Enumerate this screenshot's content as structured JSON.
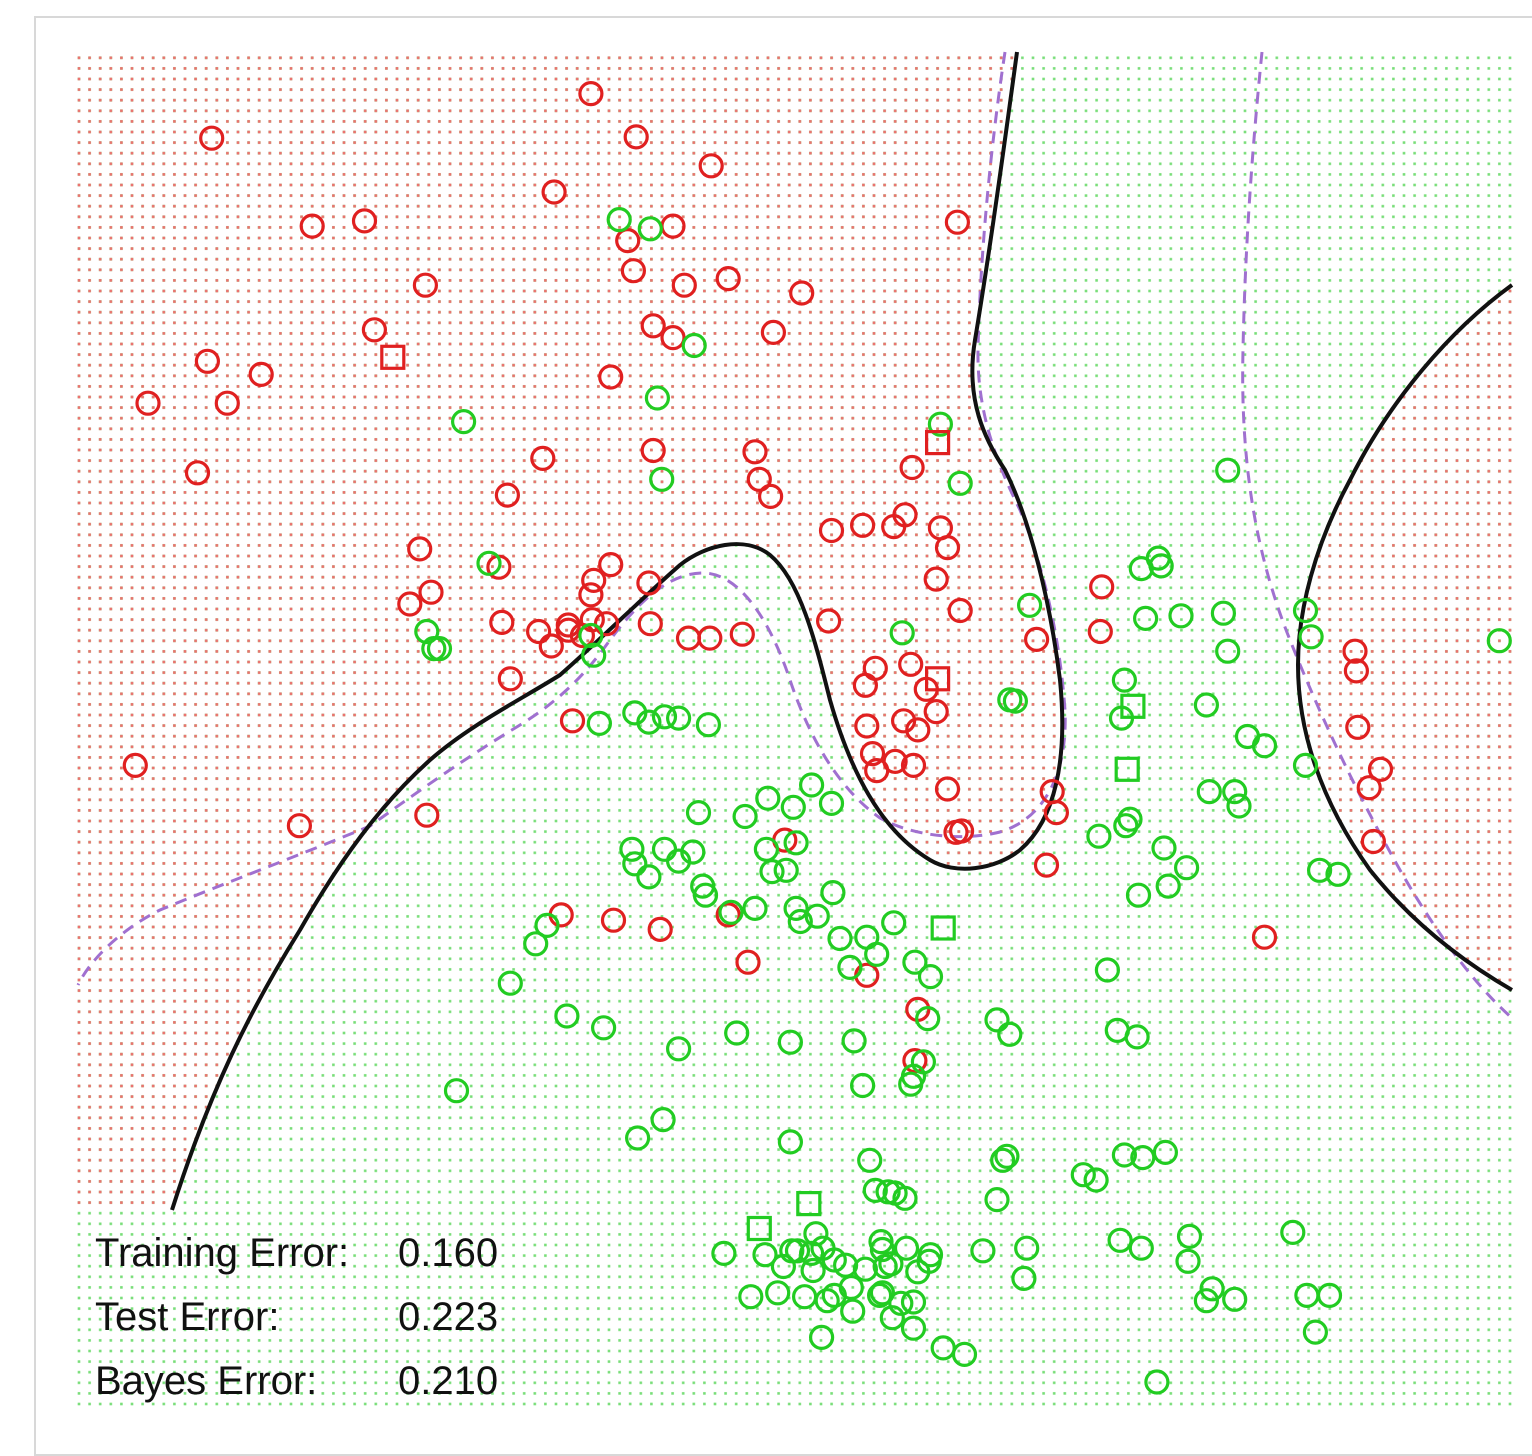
{
  "chart_data": {
    "type": "scatter",
    "title": "",
    "xlabel": "",
    "ylabel": "",
    "grid": false,
    "legend": "none",
    "xlim": [
      0,
      1
    ],
    "ylim": [
      0,
      1
    ],
    "colors": {
      "red": "#e02020",
      "green": "#22cc22",
      "red_grid": "#ee7070",
      "green_grid": "#7be07b",
      "boundary": "#111111",
      "bayes_boundary": "#a070d0"
    },
    "series": [
      {
        "color": "red",
        "points": [
          [
            0.086,
            0.948
          ],
          [
            0.157,
            0.881
          ],
          [
            0.328,
            0.907
          ],
          [
            0.041,
            0.746
          ],
          [
            0.083,
            0.778
          ],
          [
            0.097,
            0.746
          ],
          [
            0.121,
            0.768
          ],
          [
            0.194,
            0.885
          ],
          [
            0.237,
            0.836
          ],
          [
            0.201,
            0.802
          ],
          [
            0.076,
            0.693
          ],
          [
            0.295,
            0.676
          ],
          [
            0.354,
            0.982
          ],
          [
            0.386,
            0.949
          ],
          [
            0.439,
            0.927
          ],
          [
            0.412,
            0.881
          ],
          [
            0.384,
            0.847
          ],
          [
            0.38,
            0.87
          ],
          [
            0.42,
            0.836
          ],
          [
            0.368,
            0.766
          ],
          [
            0.398,
            0.805
          ],
          [
            0.412,
            0.796
          ],
          [
            0.451,
            0.841
          ],
          [
            0.483,
            0.8
          ],
          [
            0.503,
            0.83
          ],
          [
            0.613,
            0.884
          ],
          [
            0.398,
            0.71
          ],
          [
            0.32,
            0.704
          ],
          [
            0.47,
            0.709
          ],
          [
            0.473,
            0.688
          ],
          [
            0.481,
            0.675
          ],
          [
            0.524,
            0.649
          ],
          [
            0.546,
            0.653
          ],
          [
            0.568,
            0.652
          ],
          [
            0.576,
            0.661
          ],
          [
            0.601,
            0.651
          ],
          [
            0.581,
            0.697
          ],
          [
            0.598,
            0.612
          ],
          [
            0.615,
            0.588
          ],
          [
            0.606,
            0.636
          ],
          [
            0.356,
            0.611
          ],
          [
            0.368,
            0.623
          ],
          [
            0.395,
            0.609
          ],
          [
            0.396,
            0.578
          ],
          [
            0.365,
            0.578
          ],
          [
            0.354,
            0.6
          ],
          [
            0.289,
            0.621
          ],
          [
            0.291,
            0.579
          ],
          [
            0.317,
            0.572
          ],
          [
            0.338,
            0.573
          ],
          [
            0.297,
            0.536
          ],
          [
            0.326,
            0.561
          ],
          [
            0.338,
            0.577
          ],
          [
            0.348,
            0.569
          ],
          [
            0.355,
            0.581
          ],
          [
            0.233,
            0.635
          ],
          [
            0.226,
            0.593
          ],
          [
            0.241,
            0.602
          ],
          [
            0.423,
            0.567
          ],
          [
            0.438,
            0.567
          ],
          [
            0.461,
            0.57
          ],
          [
            0.522,
            0.58
          ],
          [
            0.548,
            0.531
          ],
          [
            0.555,
            0.544
          ],
          [
            0.58,
            0.547
          ],
          [
            0.591,
            0.528
          ],
          [
            0.598,
            0.511
          ],
          [
            0.585,
            0.497
          ],
          [
            0.575,
            0.504
          ],
          [
            0.569,
            0.473
          ],
          [
            0.553,
            0.479
          ],
          [
            0.549,
            0.5
          ],
          [
            0.556,
            0.466
          ],
          [
            0.582,
            0.47
          ],
          [
            0.606,
            0.452
          ],
          [
            0.612,
            0.419
          ],
          [
            0.616,
            0.42
          ],
          [
            0.669,
            0.566
          ],
          [
            0.68,
            0.45
          ],
          [
            0.683,
            0.434
          ],
          [
            0.676,
            0.394
          ],
          [
            0.715,
            0.606
          ],
          [
            0.714,
            0.572
          ],
          [
            0.032,
            0.47
          ],
          [
            0.148,
            0.424
          ],
          [
            0.238,
            0.432
          ],
          [
            0.333,
            0.356
          ],
          [
            0.341,
            0.504
          ],
          [
            0.37,
            0.352
          ],
          [
            0.403,
            0.345
          ],
          [
            0.451,
            0.356
          ],
          [
            0.465,
            0.32
          ],
          [
            0.491,
            0.413
          ],
          [
            0.549,
            0.31
          ],
          [
            0.585,
            0.284
          ],
          [
            0.583,
            0.245
          ],
          [
            0.907,
            0.412
          ],
          [
            0.83,
            0.339
          ],
          [
            0.895,
            0.542
          ],
          [
            0.894,
            0.557
          ],
          [
            0.896,
            0.499
          ],
          [
            0.904,
            0.453
          ],
          [
            0.912,
            0.467
          ]
        ]
      },
      {
        "color": "green",
        "points": [
          [
            0.374,
            0.886
          ],
          [
            0.396,
            0.879
          ],
          [
            0.427,
            0.79
          ],
          [
            0.264,
            0.732
          ],
          [
            0.401,
            0.75
          ],
          [
            0.601,
            0.73
          ],
          [
            0.615,
            0.685
          ],
          [
            0.804,
            0.695
          ],
          [
            0.404,
            0.688
          ],
          [
            0.282,
            0.624
          ],
          [
            0.238,
            0.572
          ],
          [
            0.243,
            0.559
          ],
          [
            0.247,
            0.559
          ],
          [
            0.354,
            0.569
          ],
          [
            0.356,
            0.554
          ],
          [
            0.574,
            0.571
          ],
          [
            0.36,
            0.502
          ],
          [
            0.385,
            0.51
          ],
          [
            0.395,
            0.503
          ],
          [
            0.406,
            0.507
          ],
          [
            0.416,
            0.506
          ],
          [
            0.437,
            0.501
          ],
          [
            0.65,
            0.52
          ],
          [
            0.654,
            0.519
          ],
          [
            0.664,
            0.592
          ],
          [
            0.746,
            0.582
          ],
          [
            0.743,
            0.62
          ],
          [
            0.755,
            0.628
          ],
          [
            0.757,
            0.622
          ],
          [
            0.771,
            0.584
          ],
          [
            0.801,
            0.586
          ],
          [
            0.804,
            0.557
          ],
          [
            0.859,
            0.588
          ],
          [
            0.863,
            0.568
          ],
          [
            0.731,
            0.535
          ],
          [
            0.729,
            0.506
          ],
          [
            0.789,
            0.516
          ],
          [
            0.818,
            0.492
          ],
          [
            0.83,
            0.485
          ],
          [
            0.882,
            0.387
          ],
          [
            0.996,
            0.565
          ],
          [
            0.43,
            0.434
          ],
          [
            0.463,
            0.431
          ],
          [
            0.479,
            0.445
          ],
          [
            0.497,
            0.438
          ],
          [
            0.51,
            0.455
          ],
          [
            0.524,
            0.441
          ],
          [
            0.383,
            0.406
          ],
          [
            0.385,
            0.395
          ],
          [
            0.395,
            0.385
          ],
          [
            0.406,
            0.406
          ],
          [
            0.416,
            0.397
          ],
          [
            0.426,
            0.404
          ],
          [
            0.433,
            0.378
          ],
          [
            0.435,
            0.371
          ],
          [
            0.453,
            0.358
          ],
          [
            0.47,
            0.361
          ],
          [
            0.478,
            0.406
          ],
          [
            0.482,
            0.389
          ],
          [
            0.492,
            0.39
          ],
          [
            0.499,
            0.411
          ],
          [
            0.499,
            0.361
          ],
          [
            0.502,
            0.351
          ],
          [
            0.514,
            0.355
          ],
          [
            0.525,
            0.373
          ],
          [
            0.53,
            0.338
          ],
          [
            0.537,
            0.316
          ],
          [
            0.549,
            0.339
          ],
          [
            0.556,
            0.326
          ],
          [
            0.568,
            0.35
          ],
          [
            0.583,
            0.32
          ],
          [
            0.594,
            0.309
          ],
          [
            0.297,
            0.304
          ],
          [
            0.323,
            0.348
          ],
          [
            0.315,
            0.334
          ],
          [
            0.337,
            0.279
          ],
          [
            0.363,
            0.27
          ],
          [
            0.416,
            0.254
          ],
          [
            0.457,
            0.266
          ],
          [
            0.495,
            0.259
          ],
          [
            0.54,
            0.26
          ],
          [
            0.546,
            0.226
          ],
          [
            0.58,
            0.227
          ],
          [
            0.582,
            0.233
          ],
          [
            0.589,
            0.244
          ],
          [
            0.592,
            0.277
          ],
          [
            0.641,
            0.276
          ],
          [
            0.65,
            0.265
          ],
          [
            0.726,
            0.268
          ],
          [
            0.74,
            0.263
          ],
          [
            0.719,
            0.314
          ],
          [
            0.741,
            0.371
          ],
          [
            0.762,
            0.378
          ],
          [
            0.775,
            0.392
          ],
          [
            0.713,
            0.416
          ],
          [
            0.732,
            0.424
          ],
          [
            0.735,
            0.429
          ],
          [
            0.759,
            0.407
          ],
          [
            0.812,
            0.439
          ],
          [
            0.809,
            0.45
          ],
          [
            0.791,
            0.45
          ],
          [
            0.859,
            0.47
          ],
          [
            0.869,
            0.39
          ],
          [
            0.259,
            0.222
          ],
          [
            0.387,
            0.186
          ],
          [
            0.405,
            0.2
          ],
          [
            0.495,
            0.183
          ],
          [
            0.551,
            0.169
          ],
          [
            0.555,
            0.146
          ],
          [
            0.564,
            0.145
          ],
          [
            0.569,
            0.144
          ],
          [
            0.576,
            0.14
          ],
          [
            0.641,
            0.139
          ],
          [
            0.645,
            0.169
          ],
          [
            0.648,
            0.172
          ],
          [
            0.744,
            0.171
          ],
          [
            0.731,
            0.173
          ],
          [
            0.711,
            0.154
          ],
          [
            0.702,
            0.158
          ],
          [
            0.76,
            0.175
          ],
          [
            0.728,
            0.108
          ],
          [
            0.743,
            0.102
          ],
          [
            0.777,
            0.111
          ],
          [
            0.789,
            0.062
          ],
          [
            0.559,
            0.107
          ],
          [
            0.594,
            0.097
          ],
          [
            0.631,
            0.1
          ],
          [
            0.662,
            0.102
          ],
          [
            0.66,
            0.079
          ],
          [
            0.754,
            0.0
          ],
          [
            0.776,
            0.092
          ],
          [
            0.793,
            0.071
          ],
          [
            0.809,
            0.063
          ],
          [
            0.85,
            0.114
          ],
          [
            0.866,
            0.038
          ],
          [
            0.876,
            0.066
          ],
          [
            0.86,
            0.066
          ],
          [
            0.558,
            0.066
          ],
          [
            0.562,
            0.088
          ],
          [
            0.511,
            0.085
          ],
          [
            0.477,
            0.097
          ],
          [
            0.448,
            0.098
          ],
          [
            0.467,
            0.065
          ],
          [
            0.5,
            0.1
          ],
          [
            0.548,
            0.086
          ],
          [
            0.585,
            0.084
          ],
          [
            0.573,
            0.06
          ],
          [
            0.526,
            0.093
          ],
          [
            0.534,
            0.089
          ],
          [
            0.505,
            0.065
          ],
          [
            0.526,
            0.066
          ],
          [
            0.486,
            0.068
          ],
          [
            0.538,
            0.072
          ],
          [
            0.56,
            0.068
          ],
          [
            0.566,
            0.09
          ],
          [
            0.577,
            0.102
          ],
          [
            0.56,
            0.101
          ],
          [
            0.518,
            0.102
          ],
          [
            0.513,
            0.113
          ],
          [
            0.51,
            0.098
          ],
          [
            0.496,
            0.1
          ],
          [
            0.49,
            0.088
          ],
          [
            0.593,
            0.092
          ],
          [
            0.582,
            0.061
          ],
          [
            0.517,
            0.034
          ],
          [
            0.521,
            0.062
          ],
          [
            0.539,
            0.054
          ],
          [
            0.567,
            0.049
          ],
          [
            0.582,
            0.041
          ],
          [
            0.603,
            0.026
          ],
          [
            0.618,
            0.021
          ]
        ]
      }
    ],
    "squares": [
      {
        "color": "red",
        "points": [
          [
            0.214,
            0.781
          ],
          [
            0.599,
            0.716
          ],
          [
            0.599,
            0.536
          ]
        ]
      },
      {
        "color": "green",
        "points": [
          [
            0.737,
            0.515
          ],
          [
            0.733,
            0.467
          ],
          [
            0.603,
            0.346
          ],
          [
            0.508,
            0.136
          ],
          [
            0.473,
            0.117
          ]
        ]
      }
    ],
    "annotations": [
      {
        "label": "Training Error:",
        "value": "0.160"
      },
      {
        "label": "Test Error:",
        "value": "0.223"
      },
      {
        "label": "Bayes Error:",
        "value": "0.210"
      }
    ]
  }
}
